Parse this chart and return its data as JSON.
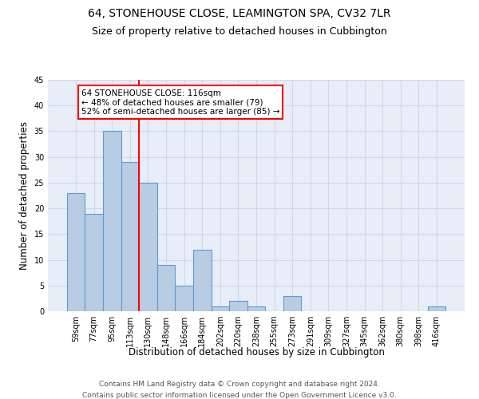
{
  "title": "64, STONEHOUSE CLOSE, LEAMINGTON SPA, CV32 7LR",
  "subtitle": "Size of property relative to detached houses in Cubbington",
  "xlabel": "Distribution of detached houses by size in Cubbington",
  "ylabel": "Number of detached properties",
  "categories": [
    "59sqm",
    "77sqm",
    "95sqm",
    "113sqm",
    "130sqm",
    "148sqm",
    "166sqm",
    "184sqm",
    "202sqm",
    "220sqm",
    "238sqm",
    "255sqm",
    "273sqm",
    "291sqm",
    "309sqm",
    "327sqm",
    "345sqm",
    "362sqm",
    "380sqm",
    "398sqm",
    "416sqm"
  ],
  "values": [
    23,
    19,
    35,
    29,
    25,
    9,
    5,
    12,
    1,
    2,
    1,
    0,
    3,
    0,
    0,
    0,
    0,
    0,
    0,
    0,
    1
  ],
  "bar_color": "#b8cce4",
  "bar_edge_color": "#5b9bd5",
  "bar_width": 1.0,
  "vline_x": 3.5,
  "vline_color": "red",
  "annotation_text": "64 STONEHOUSE CLOSE: 116sqm\n← 48% of detached houses are smaller (79)\n52% of semi-detached houses are larger (85) →",
  "annotation_box_color": "white",
  "annotation_box_edge_color": "red",
  "ylim": [
    0,
    45
  ],
  "yticks": [
    0,
    5,
    10,
    15,
    20,
    25,
    30,
    35,
    40,
    45
  ],
  "grid_color": "#d0d8e8",
  "background_color": "#e8eef8",
  "footer_line1": "Contains HM Land Registry data © Crown copyright and database right 2024.",
  "footer_line2": "Contains public sector information licensed under the Open Government Licence v3.0.",
  "title_fontsize": 10,
  "subtitle_fontsize": 9,
  "xlabel_fontsize": 8.5,
  "ylabel_fontsize": 8.5,
  "tick_fontsize": 7,
  "footer_fontsize": 6.5,
  "annot_fontsize": 7.5
}
